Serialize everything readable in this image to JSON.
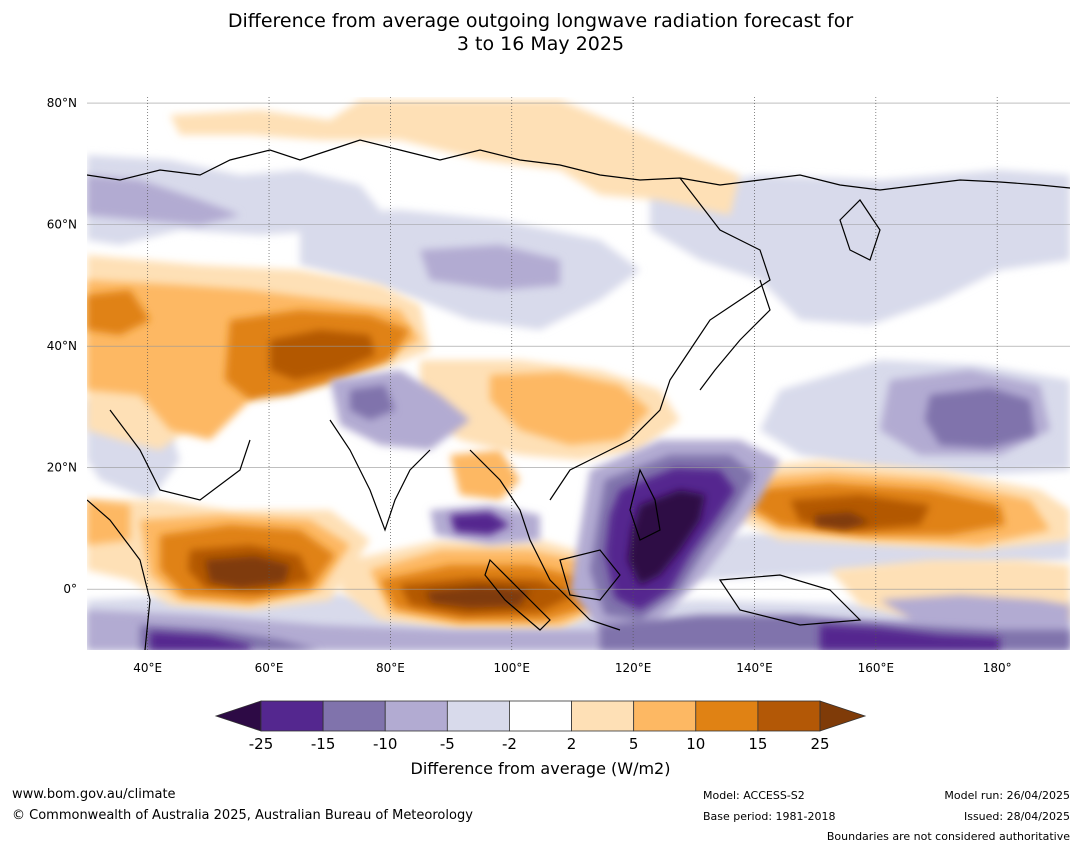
{
  "title_line1": "Difference from average outgoing longwave radiation forecast for",
  "title_line2": "3 to 16 May 2025",
  "map": {
    "lat_ticks": [
      {
        "value": 80,
        "label": "80°N"
      },
      {
        "value": 60,
        "label": "60°N"
      },
      {
        "value": 40,
        "label": "40°N"
      },
      {
        "value": 20,
        "label": "20°N"
      },
      {
        "value": 0,
        "label": "0°"
      }
    ],
    "lon_ticks": [
      {
        "value": 40,
        "label": "40°E"
      },
      {
        "value": 60,
        "label": "60°E"
      },
      {
        "value": 80,
        "label": "80°E"
      },
      {
        "value": 100,
        "label": "100°E"
      },
      {
        "value": 120,
        "label": "120°E"
      },
      {
        "value": 140,
        "label": "140°E"
      },
      {
        "value": 160,
        "label": "160°E"
      },
      {
        "value": 180,
        "label": "180°"
      }
    ],
    "extent": {
      "lon_min": 30,
      "lon_max": 192,
      "lat_min": -10,
      "lat_max": 81
    }
  },
  "colorbar": {
    "levels": [
      "-25",
      "-15",
      "-10",
      "-5",
      "-2",
      "2",
      "5",
      "10",
      "15",
      "25"
    ],
    "colors": [
      "#2d0a45",
      "#54278f",
      "#8073ac",
      "#b2abd2",
      "#d8daeb",
      "#ffffff",
      "#fee0b6",
      "#fdb863",
      "#e08214",
      "#b35806",
      "#7f3b08"
    ],
    "label": "Difference from average (W/m2)"
  },
  "footer": {
    "url": "www.bom.gov.au/climate",
    "copyright": "© Commonwealth of Australia 2025, Australian Bureau of Meteorology",
    "model": "Model: ACCESS-S2",
    "base_period": "Base period: 1981-2018",
    "model_run": "Model run: 26/04/2025",
    "issued": "Issued: 28/04/2025",
    "disclaimer": "Boundaries are not considered authoritative"
  }
}
